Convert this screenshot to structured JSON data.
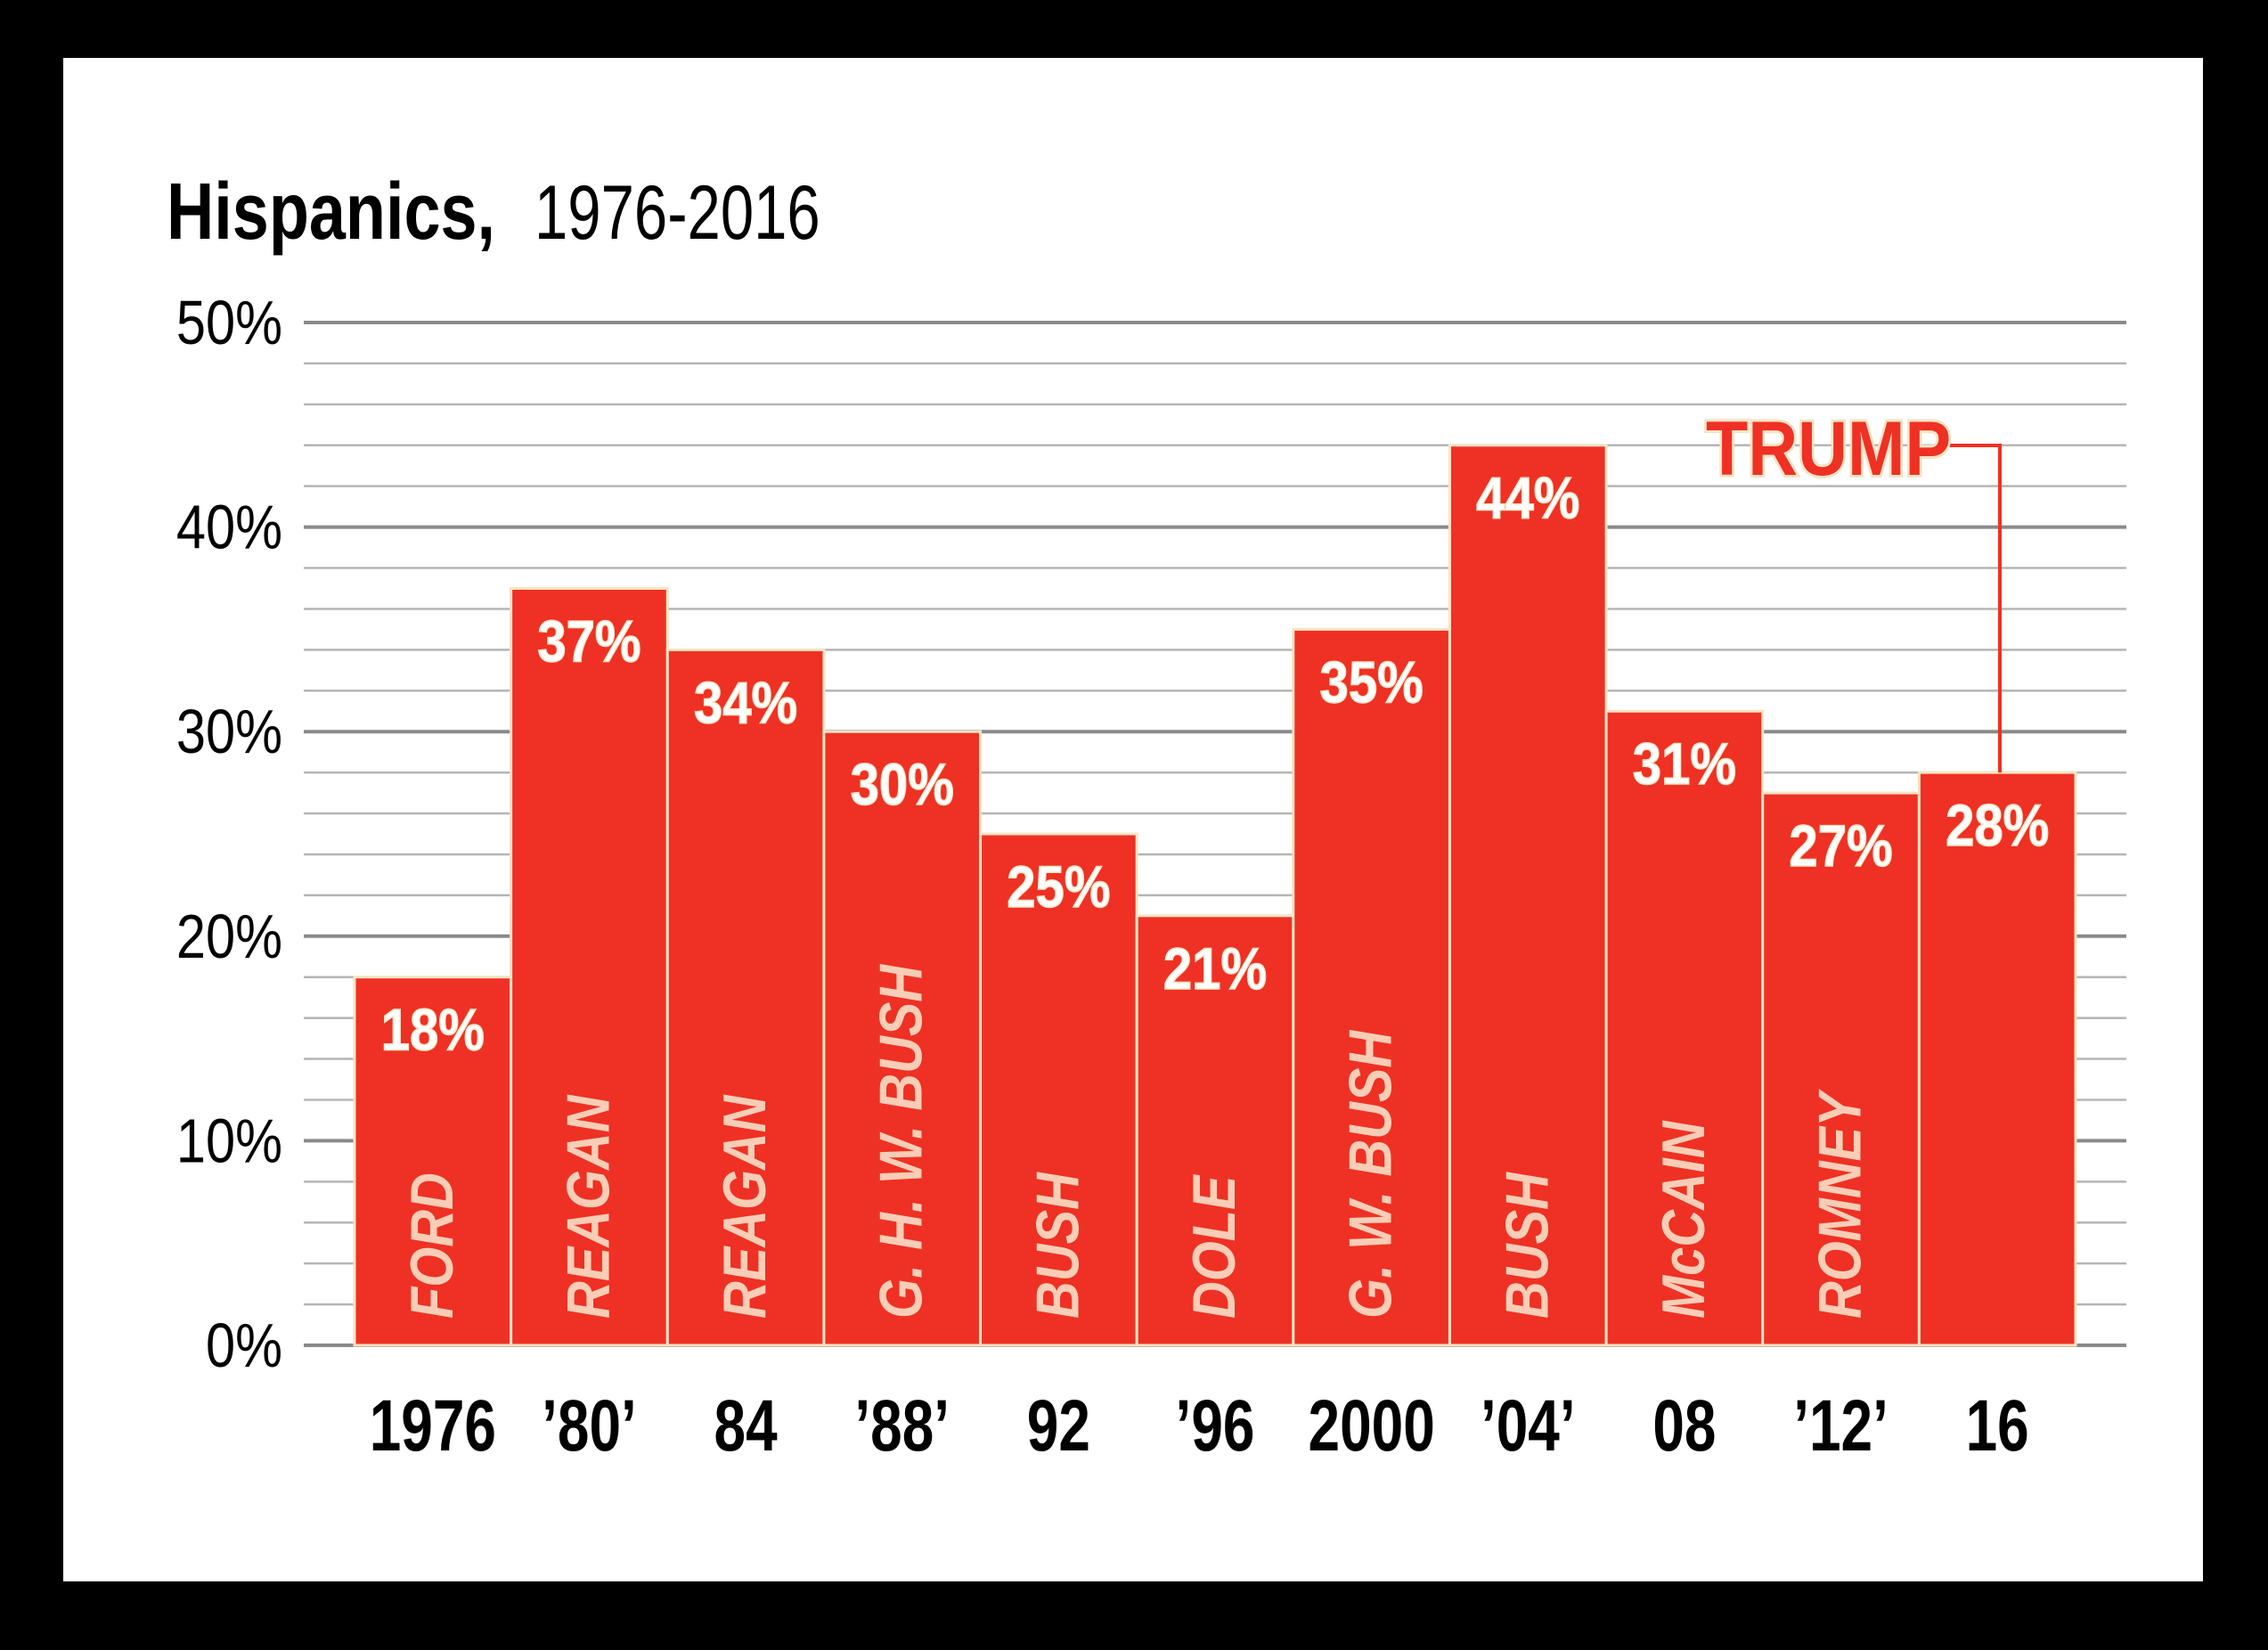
{
  "chart_data": {
    "type": "bar",
    "title": "Hispanics,",
    "subtitle": "1976-2016",
    "xlabel": "",
    "ylabel": "",
    "ylim": [
      0,
      50
    ],
    "yticks": [
      0,
      10,
      20,
      30,
      40,
      50
    ],
    "ytick_labels": [
      "0%",
      "10%",
      "20%",
      "30%",
      "40%",
      "50%"
    ],
    "grid": true,
    "categories": [
      "1976",
      "’80’",
      "84",
      "’88’",
      "92",
      "’96",
      "2000",
      "’04’",
      "08",
      "’12’",
      "16"
    ],
    "candidates": [
      "FORD",
      "REAGAN",
      "REAGAN",
      "G. H. W. BUSH",
      "BUSH",
      "DOLE",
      "G. W. BUSH",
      "BUSH",
      "McCAIN",
      "ROMNEY",
      ""
    ],
    "values": [
      18,
      37,
      34,
      30,
      25,
      21,
      35,
      44,
      31,
      27,
      28
    ],
    "value_labels": [
      "18%",
      "37%",
      "34%",
      "30%",
      "25%",
      "21%",
      "35%",
      "44%",
      "31%",
      "27%",
      "28%"
    ],
    "annotation": {
      "text": "TRUMP",
      "target_index": 10
    },
    "colors": {
      "bar": "#EE3124",
      "bar_edge": "#F7E3C4",
      "candidate_text": "#F9CDB6",
      "grid_major": "#8a8a8a",
      "grid_minor": "#b5b5b5"
    }
  }
}
